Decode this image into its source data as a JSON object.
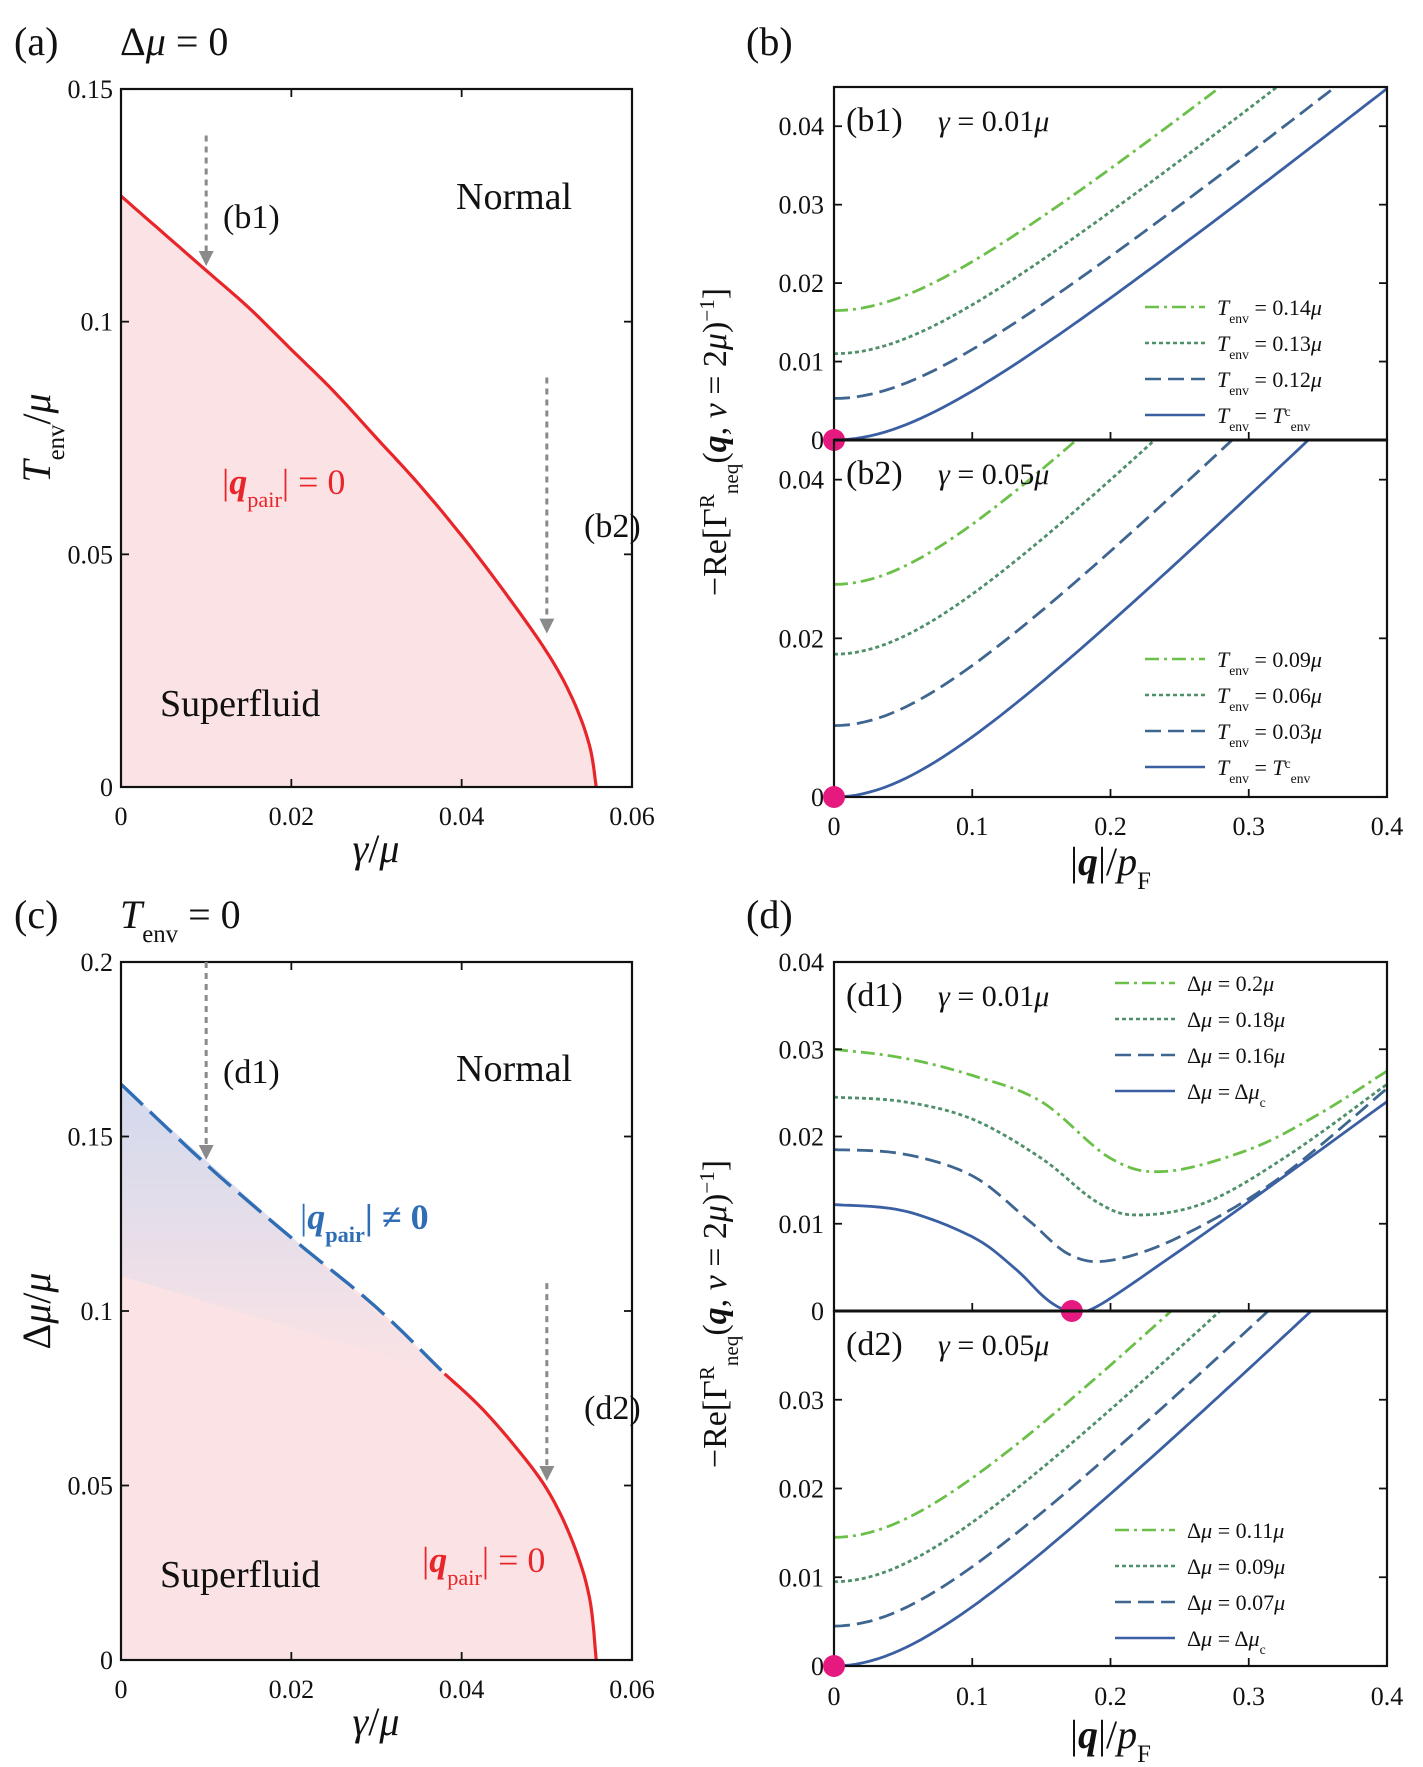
{
  "colors": {
    "red": "#e8262a",
    "blue_dash": "#2f6db5",
    "pink_fill": "#fbe3e5",
    "blue_fill": "#cdd8ee",
    "arrow": "#8a8a8a",
    "marker": "#e6197f",
    "curve_light_green": "#6cc04a",
    "curve_mid_green": "#4f8f6a",
    "curve_slate": "#3f6690",
    "curve_blue": "#3b5fa3"
  },
  "chart_data": [
    {
      "id": "a",
      "type": "area",
      "panel_label": "(a)",
      "header": "Δμ = 0",
      "xlabel": "γ/μ",
      "ylabel": "T_env/μ",
      "xlim": [
        0,
        0.06
      ],
      "ylim": [
        0,
        0.15
      ],
      "xticks": [
        "0",
        "0.02",
        "0.04",
        "0.06"
      ],
      "yticks": [
        "0",
        "0.05",
        "0.1",
        "0.15"
      ],
      "boundary": {
        "name": "|q_pair| = 0",
        "x": [
          0,
          0.005,
          0.01,
          0.015,
          0.02,
          0.025,
          0.03,
          0.035,
          0.04,
          0.045,
          0.05,
          0.053,
          0.055,
          0.0558
        ],
        "y": [
          0.127,
          0.119,
          0.111,
          0.103,
          0.094,
          0.085,
          0.075,
          0.065,
          0.054,
          0.042,
          0.029,
          0.019,
          0.009,
          0
        ]
      },
      "regions": [
        "Normal",
        "Superfluid"
      ],
      "arrows": [
        {
          "label": "(b1)",
          "x": 0.01,
          "y_from": 0.14,
          "y_to": 0.111
        },
        {
          "label": "(b2)",
          "x": 0.05,
          "y_from": 0.088,
          "y_to": 0.032
        }
      ],
      "curve_label": "|q_pair| = 0"
    },
    {
      "id": "b",
      "type": "line",
      "panel_label": "(b)",
      "xlabel": "|q|/p_F",
      "ylabel": "−Re[Γ^R_neq(q, ν = 2μ)^{−1}]",
      "xlim": [
        0,
        0.4
      ],
      "xticks": [
        "0",
        "0.1",
        "0.2",
        "0.3",
        "0.4"
      ],
      "subpanels": [
        {
          "label": "(b1)",
          "title": "γ = 0.01μ",
          "ylim": [
            0,
            0.045
          ],
          "yticks": [
            "0",
            "0.01",
            "0.02",
            "0.03",
            "0.04"
          ],
          "series": [
            {
              "name": "T_env = 0.14μ",
              "y0": 0.0165,
              "slope": 0.14
            },
            {
              "name": "T_env = 0.13μ",
              "y0": 0.011,
              "slope": 0.14
            },
            {
              "name": "T_env = 0.12μ",
              "y0": 0.0053,
              "slope": 0.14
            },
            {
              "name": "T_env = T^c_env",
              "y0": 0,
              "slope": 0.14
            }
          ]
        },
        {
          "label": "(b2)",
          "title": "γ = 0.05μ",
          "ylim": [
            0,
            0.045
          ],
          "yticks": [
            "0",
            "0.02",
            "0.04"
          ],
          "series": [
            {
              "name": "T_env = 0.09μ",
              "y0": 0.0268,
              "slope": 0.17
            },
            {
              "name": "T_env = 0.06μ",
              "y0": 0.018,
              "slope": 0.17
            },
            {
              "name": "T_env = 0.03μ",
              "y0": 0.009,
              "slope": 0.17
            },
            {
              "name": "T_env = T^c_env",
              "y0": 0,
              "slope": 0.17
            }
          ]
        }
      ]
    },
    {
      "id": "c",
      "type": "area",
      "panel_label": "(c)",
      "header": "T_env = 0",
      "xlabel": "γ/μ",
      "ylabel": "Δμ/μ",
      "xlim": [
        0,
        0.06
      ],
      "ylim": [
        0,
        0.2
      ],
      "xticks": [
        "0",
        "0.02",
        "0.04",
        "0.06"
      ],
      "yticks": [
        "0",
        "0.05",
        "0.1",
        "0.15",
        "0.2"
      ],
      "dashed_boundary": {
        "name": "|q_pair| ≠ 0",
        "x": [
          0,
          0.01,
          0.02,
          0.03,
          0.038
        ],
        "y": [
          0.165,
          0.142,
          0.121,
          0.101,
          0.082
        ]
      },
      "solid_boundary": {
        "name": "|q_pair| = 0",
        "x": [
          0.038,
          0.042,
          0.046,
          0.05,
          0.053,
          0.055,
          0.0558
        ],
        "y": [
          0.082,
          0.073,
          0.062,
          0.049,
          0.034,
          0.018,
          0
        ]
      },
      "regions": [
        "Normal",
        "Superfluid"
      ],
      "arrows": [
        {
          "label": "(d1)",
          "x": 0.01,
          "y_from": 0.2,
          "y_to": 0.142
        },
        {
          "label": "(d2)",
          "x": 0.05,
          "y_from": 0.108,
          "y_to": 0.05
        }
      ],
      "curve_labels": [
        "|q_pair| ≠ 0",
        "|q_pair| = 0"
      ]
    },
    {
      "id": "d",
      "type": "line",
      "panel_label": "(d)",
      "xlabel": "|q|/p_F",
      "ylabel": "−Re[Γ^R_neq(q, ν = 2μ)^{−1}]",
      "xlim": [
        0,
        0.4
      ],
      "xticks": [
        "0",
        "0.1",
        "0.2",
        "0.3",
        "0.4"
      ],
      "subpanels": [
        {
          "label": "(d1)",
          "title": "γ = 0.01μ",
          "ylim": [
            0,
            0.04
          ],
          "yticks": [
            "0",
            "0.01",
            "0.02",
            "0.03",
            "0.04"
          ],
          "series": [
            {
              "name": "Δμ = 0.2μ",
              "x": [
                0,
                0.05,
                0.1,
                0.15,
                0.2,
                0.24,
                0.3,
                0.35,
                0.4
              ],
              "y": [
                0.03,
                0.029,
                0.027,
                0.024,
                0.0175,
                0.016,
                0.0185,
                0.0225,
                0.0275
              ]
            },
            {
              "name": "Δμ = 0.18μ",
              "x": [
                0,
                0.05,
                0.1,
                0.15,
                0.19,
                0.22,
                0.27,
                0.33,
                0.4
              ],
              "y": [
                0.0245,
                0.024,
                0.022,
                0.0175,
                0.0125,
                0.011,
                0.0125,
                0.018,
                0.026
              ]
            },
            {
              "name": "Δμ = 0.16μ",
              "x": [
                0,
                0.05,
                0.1,
                0.14,
                0.17,
                0.2,
                0.25,
                0.32,
                0.4
              ],
              "y": [
                0.0185,
                0.018,
                0.0155,
                0.0105,
                0.0065,
                0.0058,
                0.0085,
                0.015,
                0.0255
              ]
            },
            {
              "name": "Δμ = Δμ_c",
              "x": [
                0,
                0.05,
                0.1,
                0.13,
                0.155,
                0.172,
                0.19,
                0.24,
                0.3,
                0.4
              ],
              "y": [
                0.0122,
                0.0115,
                0.0085,
                0.005,
                0.0012,
                0,
                0.0005,
                0.0058,
                0.0125,
                0.024
              ]
            }
          ],
          "marker_x": 0.172
        },
        {
          "label": "(d2)",
          "title": "γ = 0.05μ",
          "ylim": [
            0,
            0.04
          ],
          "yticks": [
            "0",
            "0.01",
            "0.02",
            "0.03"
          ],
          "series": [
            {
              "name": "Δμ = 0.11μ",
              "y0": 0.0145,
              "slope": 0.15
            },
            {
              "name": "Δμ = 0.09μ",
              "y0": 0.0095,
              "slope": 0.15
            },
            {
              "name": "Δμ = 0.07μ",
              "y0": 0.0045,
              "slope": 0.15
            },
            {
              "name": "Δμ = Δμ_c",
              "y0": 0,
              "slope": 0.15
            }
          ]
        }
      ]
    }
  ],
  "text": {
    "a_label": "(a)",
    "a_header": "Δμ = 0",
    "b_label": "(b)",
    "c_label": "(c)",
    "c_header": "T",
    "d_label": "(d)",
    "normal": "Normal",
    "superfluid": "Superfluid"
  }
}
